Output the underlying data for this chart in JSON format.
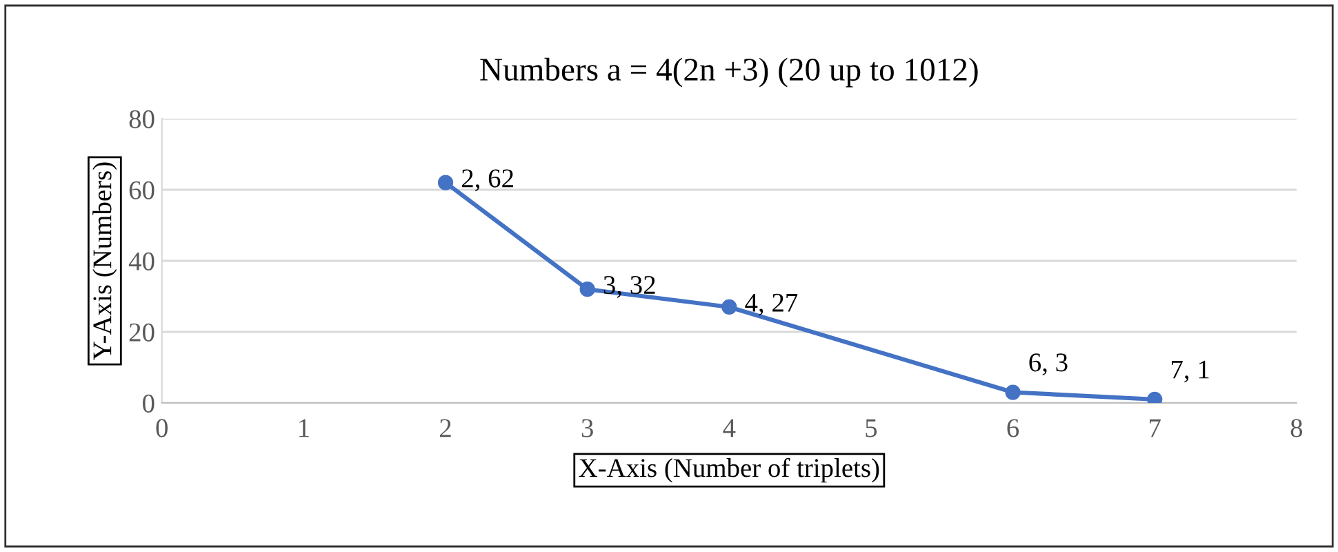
{
  "chart_data": {
    "type": "line",
    "title": "Numbers a = 4(2n +3) (20 up to 1012)",
    "xlabel": "X-Axis (Number of triplets)",
    "ylabel": "Y-Axis (Numbers)",
    "x": [
      2,
      3,
      4,
      6,
      7
    ],
    "series": [
      {
        "color": "#4472c4",
        "values": [
          62,
          32,
          27,
          3,
          1
        ],
        "value_labels": [
          "2, 62",
          "3, 32",
          "4, 27",
          "6, 3",
          "7, 1"
        ]
      }
    ],
    "xlim": [
      0,
      8
    ],
    "xticks": [
      0,
      1,
      2,
      3,
      4,
      5,
      6,
      7,
      8
    ],
    "ylim": [
      0,
      80
    ],
    "yticks": [
      0,
      20,
      40,
      60,
      80
    ],
    "grid": "y",
    "marker": "circle",
    "line_style": "solid",
    "legend": false
  }
}
